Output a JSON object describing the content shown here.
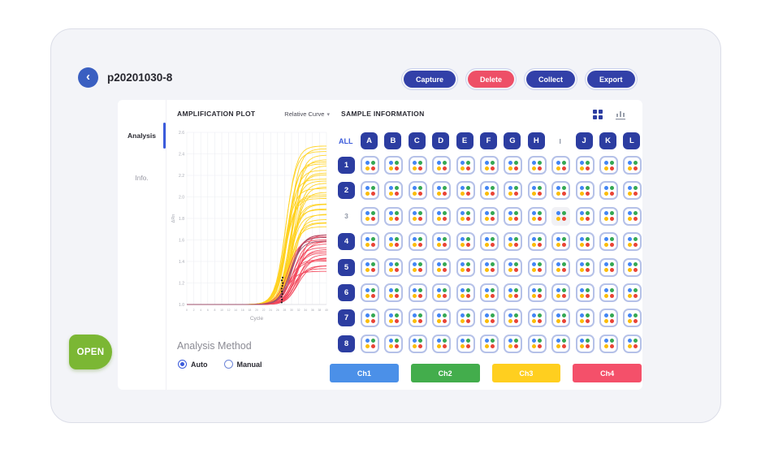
{
  "header": {
    "back_icon": "‹",
    "title": "p20201030-8",
    "buttons": [
      {
        "label": "Capture",
        "color": "#3240a8"
      },
      {
        "label": "Delete",
        "color": "#ee4f67"
      },
      {
        "label": "Collect",
        "color": "#3240a8"
      },
      {
        "label": "Export",
        "color": "#3240a8"
      }
    ]
  },
  "sidebar": {
    "items": [
      {
        "label": "Analysis",
        "active": true
      },
      {
        "label": "Info.",
        "active": false
      }
    ]
  },
  "plot_panel": {
    "title": "AMPLIFICATION PLOT",
    "curve_dropdown": {
      "value": "Relative Curve",
      "caret": "▾"
    },
    "analysis_method": {
      "label": "Analysis Method",
      "options": [
        {
          "label": "Auto",
          "selected": true
        },
        {
          "label": "Manual",
          "selected": false
        }
      ]
    }
  },
  "chart_data": {
    "type": "line",
    "title": "AMPLIFICATION PLOT",
    "xlabel": "Cycle",
    "ylabel": "ΔRn",
    "xlim": [
      0,
      40
    ],
    "ylim": [
      1.0,
      2.6
    ],
    "x_tick_step": 2,
    "y_tick_step": 0.2,
    "grid": true,
    "baseline_value": 1.0,
    "series_groups": [
      {
        "name": "ch3-yellow-amplification-bundle",
        "color": "#ffd21f",
        "count": 30,
        "baseline": 1.0,
        "plateau_min": 1.72,
        "plateau_max": 2.46,
        "midpoint_min": 28.0,
        "midpoint_max": 31.0,
        "slope": 1.5
      },
      {
        "name": "ch4-red-amplification-bundle",
        "color": "#f2485c",
        "count": 20,
        "baseline": 1.0,
        "plateau_min": 1.32,
        "plateau_max": 1.66,
        "midpoint_min": 28.5,
        "midpoint_max": 32.0,
        "slope": 1.6
      },
      {
        "name": "overlap-maroon-band",
        "color": "#9c4f6b",
        "count": 3,
        "baseline": 1.0,
        "plateau_min": 1.58,
        "plateau_max": 1.64,
        "midpoint_min": 29.5,
        "midpoint_max": 30.5,
        "slope": 1.6
      }
    ],
    "marker_cluster": {
      "color": "#1a1a1a",
      "x": 27.3,
      "y_min": 1.02,
      "y_max": 1.25,
      "count": 10,
      "note": "black Ct threshold marker cluster"
    }
  },
  "sample_panel": {
    "title": "SAMPLE INFORMATION",
    "view_toggle": {
      "active": "grid",
      "grid_icon_color": "#2c3da1",
      "chart_icon_color": "#9aa0ac"
    },
    "all_label": "ALL",
    "header_button_color": "#2c3da1",
    "columns": [
      {
        "label": "A",
        "selected": true
      },
      {
        "label": "B",
        "selected": true
      },
      {
        "label": "C",
        "selected": true
      },
      {
        "label": "D",
        "selected": true
      },
      {
        "label": "E",
        "selected": true
      },
      {
        "label": "F",
        "selected": true
      },
      {
        "label": "G",
        "selected": true
      },
      {
        "label": "H",
        "selected": true
      },
      {
        "label": "I",
        "selected": false
      },
      {
        "label": "J",
        "selected": true
      },
      {
        "label": "K",
        "selected": true
      },
      {
        "label": "L",
        "selected": true
      }
    ],
    "rows": [
      {
        "label": "1",
        "selected": true
      },
      {
        "label": "2",
        "selected": true
      },
      {
        "label": "3",
        "selected": false
      },
      {
        "label": "4",
        "selected": true
      },
      {
        "label": "5",
        "selected": true
      },
      {
        "label": "6",
        "selected": true
      },
      {
        "label": "7",
        "selected": true
      },
      {
        "label": "8",
        "selected": true
      }
    ],
    "well_dot_colors": [
      "#4285f4",
      "#34a853",
      "#fbbc05",
      "#ea4335"
    ],
    "unselected_wells": [
      "I3"
    ],
    "channels": [
      {
        "label": "Ch1",
        "color": "#4b90e8"
      },
      {
        "label": "Ch2",
        "color": "#43ad4c"
      },
      {
        "label": "Ch3",
        "color": "#ffcf1f"
      },
      {
        "label": "Ch4",
        "color": "#f4506a"
      }
    ]
  },
  "open_tab": {
    "label": "OPEN",
    "color": "#7bb734"
  }
}
